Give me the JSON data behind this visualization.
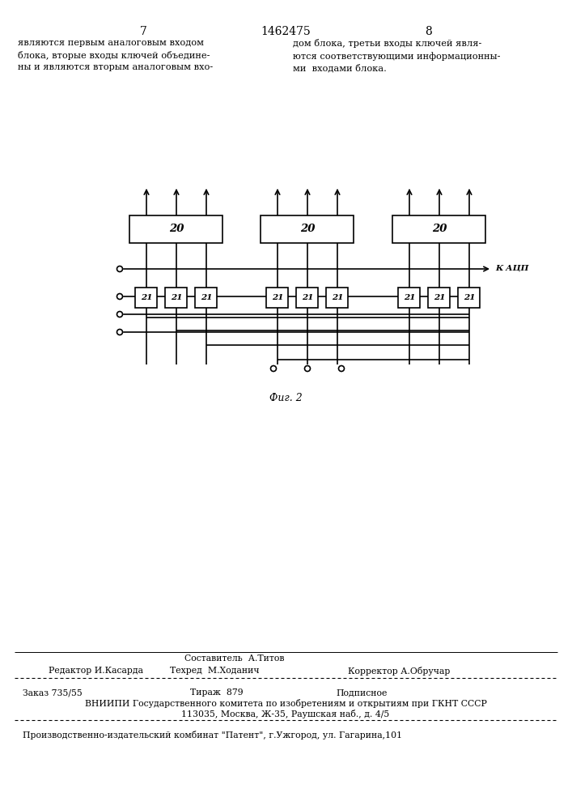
{
  "page_width": 7.07,
  "page_height": 10.0,
  "bg_color": "#ffffff",
  "header_page_left": "7",
  "header_title": "1462475",
  "header_page_right": "8",
  "text_left": "являются первым аналоговым входом\nблока, вторые входы ключей объедине-\nны и являются вторым аналоговым вхо-",
  "text_right": "дом блока, третьи входы ключей явля-\nются соответствующими информационны-\nми  входами блока.",
  "fig_caption": "Фиг. 2",
  "block20_label": "20",
  "block21_label": "21",
  "kacp_label": "К АЦП",
  "footer_line1_col1": "Составитель  А.Титов",
  "footer_line2_col1": "Редактор И.Касарда",
  "footer_line2_col2": "Техред  М.Ходанич",
  "footer_line2_col3": "Корректор А.Обручар",
  "footer_line3_col1": "Заказ 735/55",
  "footer_line3_col2": "Тираж  879",
  "footer_line3_col3": "Подписное",
  "footer_line4": "ВНИИПИ Государственного комитета по изобретениям и открытиям при ГКНТ СССР",
  "footer_line5": "113035, Москва, Ж-35, Раушская наб., д. 4/5",
  "footer_line6": "Производственно-издательский комбинат \"Патент\", г.Ужгород, ул. Гагарина,101"
}
